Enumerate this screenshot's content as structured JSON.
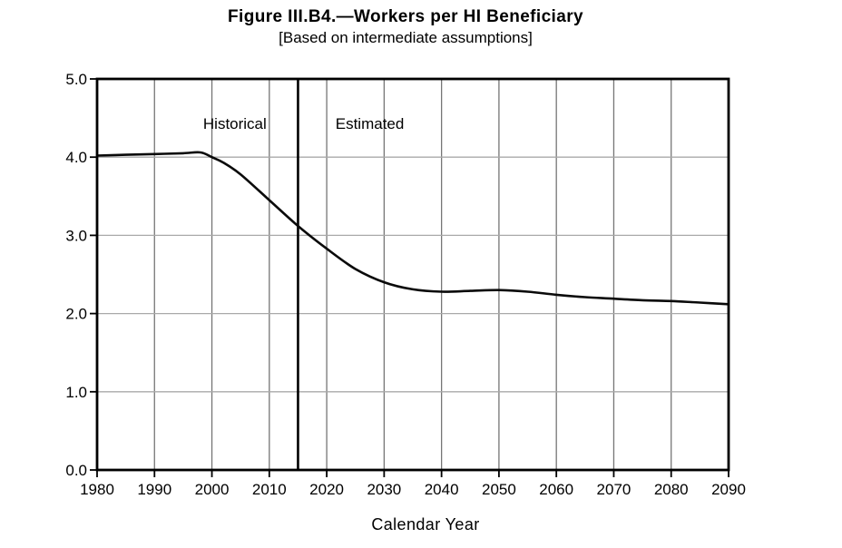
{
  "header": {
    "title": "Figure III.B4.—Workers per HI Beneficiary",
    "subtitle": "[Based on intermediate assumptions]"
  },
  "chart_data": {
    "type": "line",
    "title": "Figure III.B4.—Workers per HI Beneficiary",
    "subtitle": "[Based on intermediate assumptions]",
    "xlabel": "Calendar Year",
    "ylabel": "",
    "xlim": [
      1980,
      2090
    ],
    "ylim": [
      0.0,
      5.0
    ],
    "x_ticks": [
      1980,
      1990,
      2000,
      2010,
      2020,
      2030,
      2040,
      2050,
      2060,
      2070,
      2080,
      2090
    ],
    "y_ticks": [
      "0.0",
      "1.0",
      "2.0",
      "3.0",
      "4.0",
      "5.0"
    ],
    "grid": true,
    "legend_position": "none",
    "series": [
      {
        "name": "Workers per HI Beneficiary",
        "x": [
          1980,
          1985,
          1990,
          1995,
          1998,
          2000,
          2002,
          2005,
          2010,
          2015,
          2020,
          2025,
          2030,
          2035,
          2040,
          2045,
          2050,
          2055,
          2060,
          2065,
          2070,
          2075,
          2080,
          2085,
          2090
        ],
        "y": [
          4.02,
          4.03,
          4.04,
          4.05,
          4.06,
          4.0,
          3.93,
          3.78,
          3.45,
          3.12,
          2.83,
          2.57,
          2.4,
          2.31,
          2.28,
          2.29,
          2.3,
          2.28,
          2.24,
          2.21,
          2.19,
          2.17,
          2.16,
          2.14,
          2.12
        ]
      }
    ],
    "divider": {
      "x": 2015
    },
    "annotations": [
      {
        "text": "Historical",
        "x": 2004.0,
        "y": 4.43
      },
      {
        "text": "Estimated",
        "x": 2027.5,
        "y": 4.43
      }
    ],
    "colors": {
      "axis_frame": "#000000",
      "grid_horizontal": "#a9a9a9",
      "grid_vertical": "#757575",
      "line": "#0a0a0a",
      "divider": "#000000",
      "text": "#000000"
    }
  }
}
